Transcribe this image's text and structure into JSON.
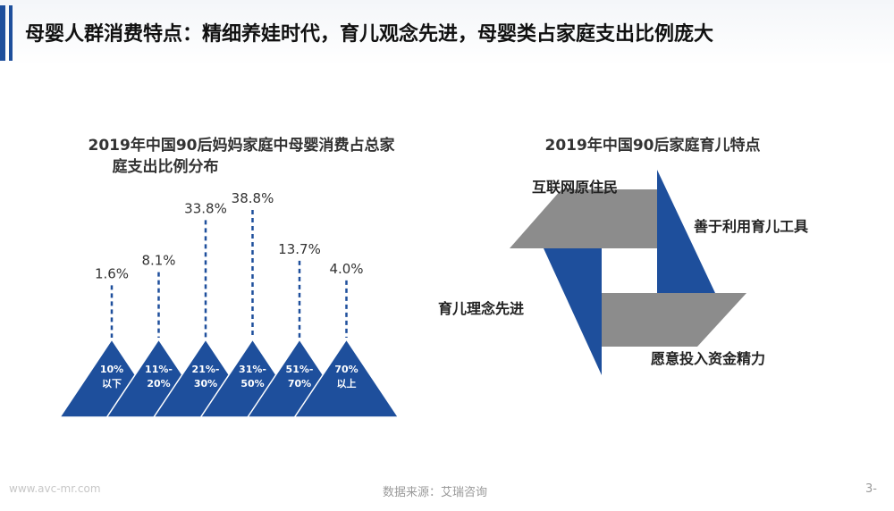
{
  "page": {
    "title": "母婴人群消费特点：精细养娃时代，育儿观念先进，母婴类占家庭支出比例庞大"
  },
  "chart_data": {
    "type": "bar",
    "title_line1": "2019年中国90后妈妈家庭中母婴消费占总家",
    "title_line2": "庭支出比例分布",
    "categories": [
      [
        "10%",
        "以下"
      ],
      [
        "11%-",
        "20%"
      ],
      [
        "21%-",
        "30%"
      ],
      [
        "31%-",
        "50%"
      ],
      [
        "51%-",
        "70%"
      ],
      [
        "70%",
        "以上"
      ]
    ],
    "values": [
      1.6,
      8.1,
      33.8,
      38.8,
      13.7,
      4.0
    ],
    "value_labels": [
      "1.6%",
      "8.1%",
      "33.8%",
      "38.8%",
      "13.7%",
      "4.0%"
    ],
    "color": "#1e4f9c"
  },
  "diagram": {
    "title": "2019年中国90后家庭育儿特点",
    "labels": [
      "互联网原住民",
      "善于利用育儿工具",
      "育儿理念先进",
      "愿意投入资金精力"
    ],
    "colors": {
      "blue": "#1e4f9c",
      "gray": "#8c8c8c"
    }
  },
  "footer": {
    "watermark": "www.avc-mr.com",
    "source": "数据来源：艾瑞咨询",
    "page_number": "3-"
  }
}
